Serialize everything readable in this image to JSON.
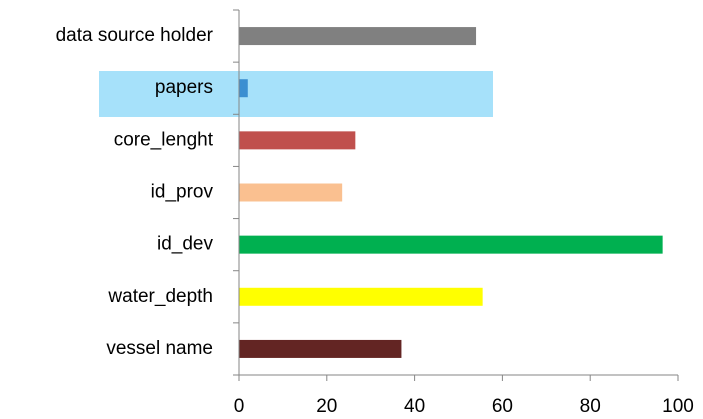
{
  "chart_data": {
    "type": "bar",
    "orientation": "horizontal",
    "categories": [
      "data source holder",
      "papers",
      "core_lenght",
      "id_prov",
      "id_dev",
      "water_depth",
      "vessel name"
    ],
    "values": [
      54,
      2,
      26.5,
      23.5,
      96.5,
      55.5,
      37
    ],
    "colors": [
      "#808080",
      "#3b8fd1",
      "#c0504d",
      "#fac090",
      "#00b050",
      "#ffff00",
      "#632523"
    ],
    "xlim": [
      0,
      100
    ],
    "xticks": [
      0,
      20,
      40,
      60,
      80,
      100
    ],
    "grid": false
  }
}
